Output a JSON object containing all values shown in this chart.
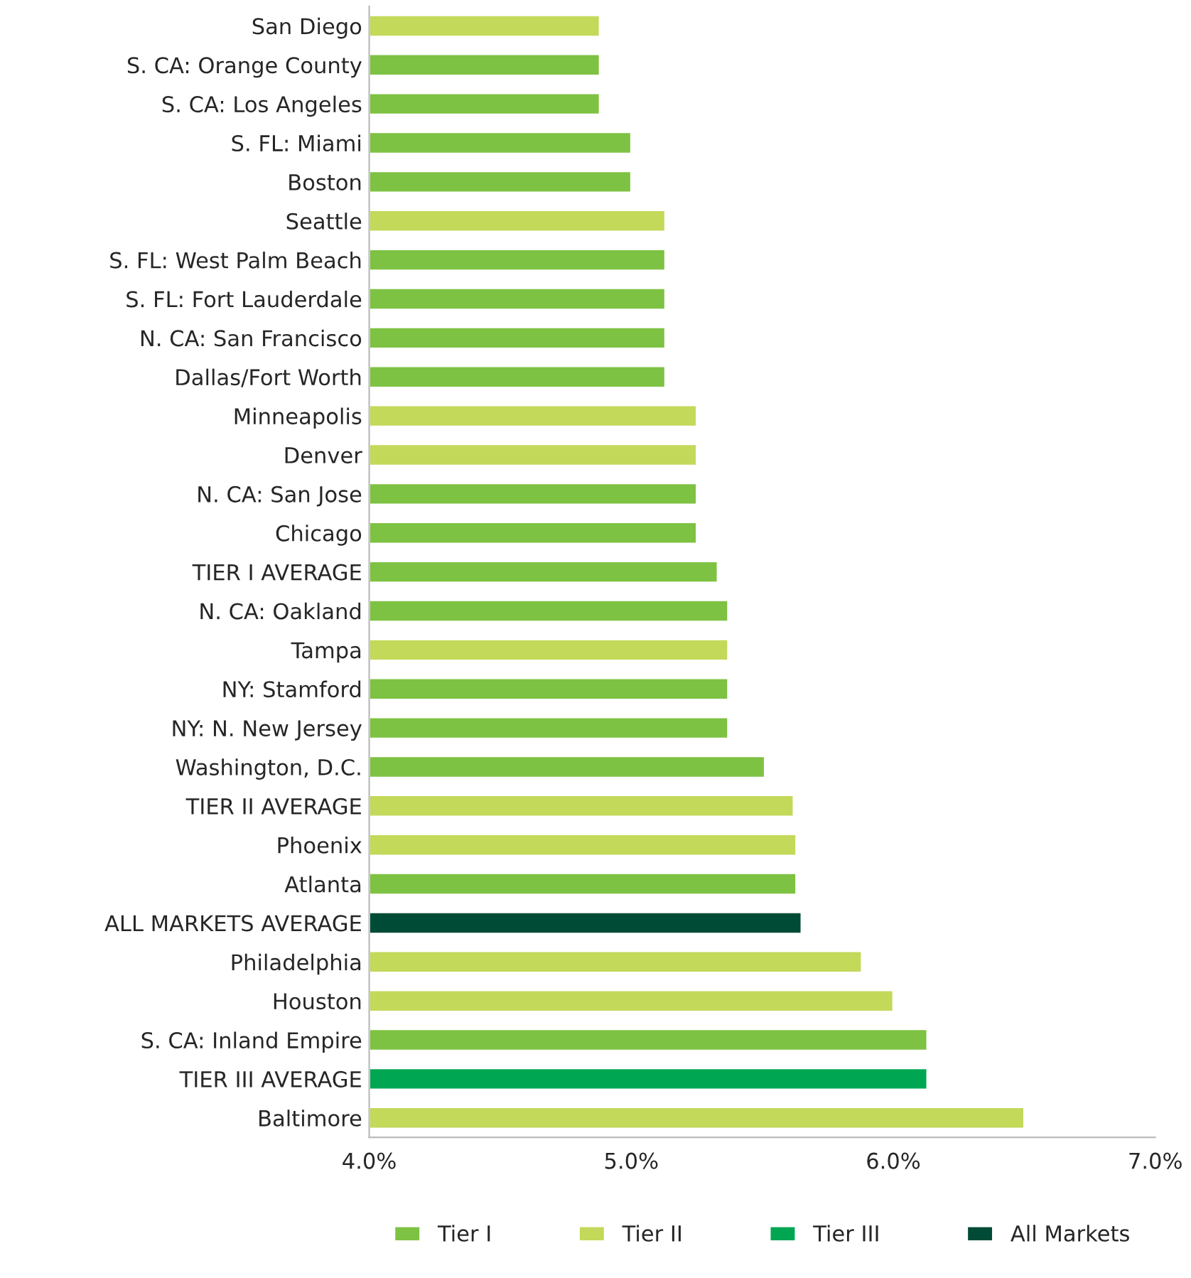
{
  "chart_data": {
    "type": "bar",
    "orientation": "horizontal",
    "categories": [
      "San Diego",
      "S. CA: Orange County",
      "S. CA: Los Angeles",
      "S. FL: Miami",
      "Boston",
      "Seattle",
      "S. FL: West Palm Beach",
      "S. FL: Fort Lauderdale",
      "N. CA: San Francisco",
      "Dallas/Fort Worth",
      "Minneapolis",
      "Denver",
      "N. CA: San Jose",
      "Chicago",
      "TIER I AVERAGE",
      "N. CA: Oakland",
      "Tampa",
      "NY: Stamford",
      "NY: N. New Jersey",
      "Washington, D.C.",
      "TIER II AVERAGE",
      "Phoenix",
      "Atlanta",
      "ALL MARKETS AVERAGE",
      "Philadelphia",
      "Houston",
      "S. CA: Inland Empire",
      "TIER III AVERAGE",
      "Baltimore"
    ],
    "series": [
      {
        "name": "Tier I",
        "color": "#7dc242",
        "values": [
          null,
          4.88,
          4.88,
          5.0,
          5.0,
          null,
          5.13,
          5.13,
          5.13,
          5.13,
          null,
          null,
          5.25,
          5.25,
          5.33,
          5.37,
          null,
          5.37,
          5.37,
          5.51,
          null,
          null,
          5.63,
          null,
          null,
          null,
          6.13,
          null,
          null
        ]
      },
      {
        "name": "Tier II",
        "color": "#c2d959",
        "values": [
          4.88,
          null,
          null,
          null,
          null,
          5.13,
          null,
          null,
          null,
          null,
          5.25,
          5.25,
          null,
          null,
          null,
          null,
          5.37,
          null,
          null,
          null,
          5.62,
          5.63,
          null,
          null,
          5.88,
          6.0,
          null,
          null,
          6.5
        ]
      },
      {
        "name": "Tier III",
        "color": "#00a651",
        "values": [
          null,
          null,
          null,
          null,
          null,
          null,
          null,
          null,
          null,
          null,
          null,
          null,
          null,
          null,
          null,
          null,
          null,
          null,
          null,
          null,
          null,
          null,
          null,
          null,
          null,
          null,
          null,
          6.13,
          null
        ]
      },
      {
        "name": "All Markets",
        "color": "#004b35",
        "values": [
          null,
          null,
          null,
          null,
          null,
          null,
          null,
          null,
          null,
          null,
          null,
          null,
          null,
          null,
          null,
          null,
          null,
          null,
          null,
          null,
          null,
          null,
          null,
          5.65,
          null,
          null,
          null,
          null,
          null
        ]
      }
    ],
    "xlim": [
      4.0,
      7.0
    ],
    "xticks": [
      {
        "value": 4.0,
        "label": "4.0%"
      },
      {
        "value": 5.0,
        "label": "5.0%"
      },
      {
        "value": 6.0,
        "label": "6.0%"
      },
      {
        "value": 7.0,
        "label": "7.0%"
      }
    ],
    "legend": "bottom",
    "grid": false
  }
}
